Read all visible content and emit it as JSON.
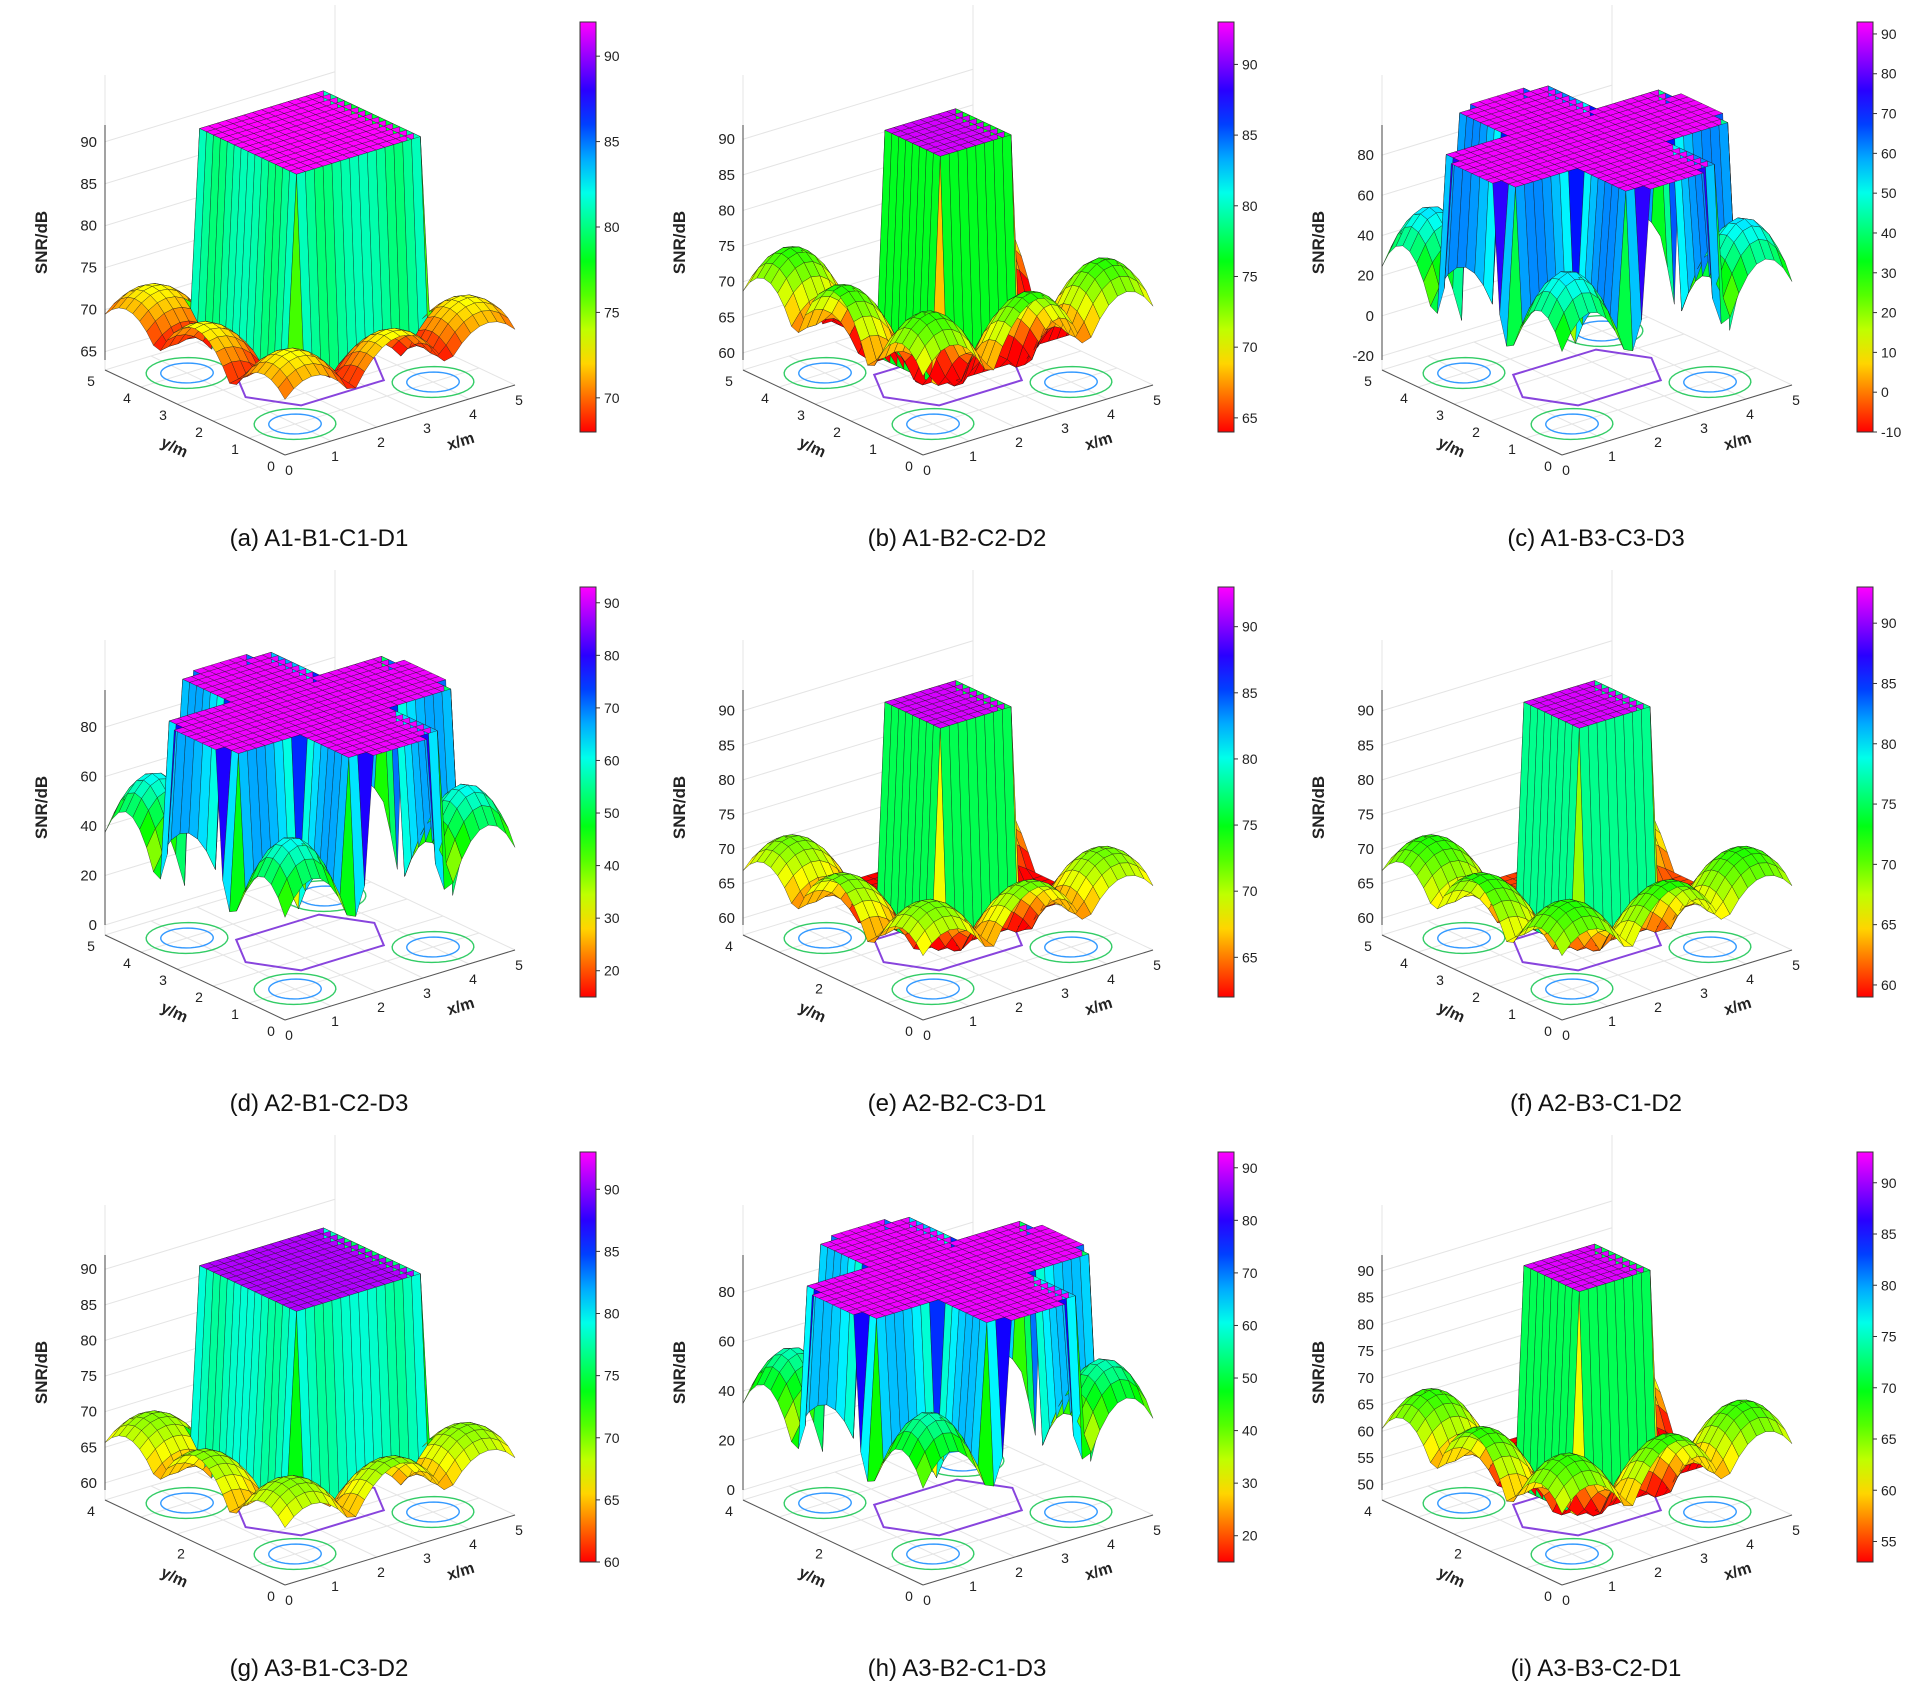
{
  "figure": {
    "panels": [
      {
        "id": "a",
        "caption": "(a)  A1-B1-C1-D1",
        "type": "roof",
        "z_ticks": [
          "65",
          "70",
          "75",
          "80",
          "85",
          "90"
        ],
        "zmin": 64,
        "zmax": 92,
        "cb_ticks": [
          "70",
          "75",
          "80",
          "85",
          "90"
        ],
        "cbmin": 68,
        "cbmax": 92,
        "x_ticks": [
          "0",
          "1",
          "2",
          "3",
          "4",
          "5"
        ],
        "y_ticks": [
          "0",
          "1",
          "2",
          "3",
          "4",
          "5"
        ],
        "top": 92,
        "domes": 73,
        "shelf": 80
      },
      {
        "id": "b",
        "caption": "(b) A1-B2-C2-D2",
        "type": "tower",
        "z_ticks": [
          "60",
          "65",
          "70",
          "75",
          "80",
          "85",
          "90"
        ],
        "zmin": 59,
        "zmax": 92,
        "cb_ticks": [
          "65",
          "70",
          "75",
          "80",
          "85",
          "90"
        ],
        "cbmin": 64,
        "cbmax": 93,
        "x_ticks": [
          "0",
          "1",
          "2",
          "3",
          "4",
          "5"
        ],
        "y_ticks": [
          "0",
          "1",
          "2",
          "3",
          "4",
          "5"
        ],
        "top": 92,
        "domes": 75,
        "shelf": 66
      },
      {
        "id": "c",
        "caption": "(c) A1-B3-C3-D3",
        "type": "cross",
        "z_ticks": [
          "-20",
          "0",
          "20",
          "40",
          "60",
          "80"
        ],
        "zmin": -22,
        "zmax": 95,
        "cb_ticks": [
          "-10",
          "0",
          "10",
          "20",
          "30",
          "40",
          "50",
          "60",
          "70",
          "80",
          "90"
        ],
        "cbmin": -10,
        "cbmax": 93,
        "x_ticks": [
          "0",
          "1",
          "2",
          "3",
          "4",
          "5"
        ],
        "y_ticks": [
          "0",
          "1",
          "2",
          "3",
          "4",
          "5"
        ],
        "top": 92,
        "domes": 55,
        "shelf": 55
      },
      {
        "id": "d",
        "caption": "(d) A2-B1-C2-D3",
        "type": "cross",
        "z_ticks": [
          "0",
          "20",
          "40",
          "60",
          "80"
        ],
        "zmin": 0,
        "zmax": 95,
        "cb_ticks": [
          "20",
          "30",
          "40",
          "50",
          "60",
          "70",
          "80",
          "90"
        ],
        "cbmin": 15,
        "cbmax": 93,
        "x_ticks": [
          "0",
          "1",
          "2",
          "3",
          "4",
          "5"
        ],
        "y_ticks": [
          "0",
          "1",
          "2",
          "3",
          "4",
          "5"
        ],
        "top": 92,
        "domes": 62,
        "shelf": 45
      },
      {
        "id": "e",
        "caption": "(e) A2-B2-C3-D1",
        "type": "tower",
        "z_ticks": [
          "60",
          "65",
          "70",
          "75",
          "80",
          "85",
          "90"
        ],
        "zmin": 59,
        "zmax": 93,
        "cb_ticks": [
          "65",
          "70",
          "75",
          "80",
          "85",
          "90"
        ],
        "cbmin": 62,
        "cbmax": 93,
        "x_ticks": [
          "0",
          "1",
          "2",
          "3",
          "4",
          "5"
        ],
        "y_ticks": [
          "0",
          "2",
          "4"
        ],
        "top": 92,
        "domes": 72,
        "shelf": 66
      },
      {
        "id": "f",
        "caption": "(f) A2-B3-C1-D2",
        "type": "tower",
        "z_ticks": [
          "60",
          "65",
          "70",
          "75",
          "80",
          "85",
          "90"
        ],
        "zmin": 59,
        "zmax": 93,
        "cb_ticks": [
          "60",
          "65",
          "70",
          "75",
          "80",
          "85",
          "90"
        ],
        "cbmin": 59,
        "cbmax": 93,
        "x_ticks": [
          "0",
          "1",
          "2",
          "3",
          "4",
          "5"
        ],
        "y_ticks": [
          "0",
          "1",
          "2",
          "3",
          "4",
          "5"
        ],
        "top": 92,
        "domes": 72,
        "shelf": 66
      },
      {
        "id": "g",
        "caption": "(g) A3-B1-C3-D2",
        "type": "roof",
        "z_ticks": [
          "60",
          "65",
          "70",
          "75",
          "80",
          "85",
          "90"
        ],
        "zmin": 59,
        "zmax": 92,
        "cb_ticks": [
          "60",
          "65",
          "70",
          "75",
          "80",
          "85",
          "90"
        ],
        "cbmin": 60,
        "cbmax": 93,
        "x_ticks": [
          "0",
          "1",
          "2",
          "3",
          "4",
          "5"
        ],
        "y_ticks": [
          "0",
          "2",
          "4"
        ],
        "top": 91,
        "domes": 70,
        "shelf": 76
      },
      {
        "id": "h",
        "caption": "(h) A3-B2-C1-D3",
        "type": "cross",
        "z_ticks": [
          "0",
          "20",
          "40",
          "60",
          "80"
        ],
        "zmin": 0,
        "zmax": 95,
        "cb_ticks": [
          "20",
          "30",
          "40",
          "50",
          "60",
          "70",
          "80",
          "90"
        ],
        "cbmin": 15,
        "cbmax": 93,
        "x_ticks": [
          "0",
          "1",
          "2",
          "3",
          "4",
          "5"
        ],
        "y_ticks": [
          "0",
          "2",
          "4"
        ],
        "top": 92,
        "domes": 58,
        "shelf": 40
      },
      {
        "id": "i",
        "caption": "(i) A3-B3-C2-D1",
        "type": "tower",
        "z_ticks": [
          "50",
          "55",
          "60",
          "65",
          "70",
          "75",
          "80",
          "85",
          "90"
        ],
        "zmin": 49,
        "zmax": 93,
        "cb_ticks": [
          "55",
          "60",
          "65",
          "70",
          "75",
          "80",
          "85",
          "90"
        ],
        "cbmin": 53,
        "cbmax": 93,
        "x_ticks": [
          "0",
          "1",
          "2",
          "3",
          "4",
          "5"
        ],
        "y_ticks": [
          "0",
          "2",
          "4"
        ],
        "top": 92,
        "domes": 68,
        "shelf": 60
      }
    ],
    "labels": {
      "z": "SNR/dB",
      "x": "x/m",
      "y": "y/m"
    }
  },
  "chart_data": {
    "type": "surface",
    "title": "",
    "zlabel": "SNR/dB",
    "xlabel": "x/m",
    "ylabel": "y/m",
    "xlim": [
      0,
      5
    ],
    "ylim": [
      0,
      5
    ],
    "colormap": "hsv (red-yellow-green-cyan-blue-magenta-red)",
    "grid": true,
    "colorbar": "right",
    "panels": [
      {
        "name": "(a)  A1-B1-C1-D1",
        "zlim": [
          65,
          92
        ],
        "peak_snr_db": 92,
        "corner_dome_snr_db": 73
      },
      {
        "name": "(b) A1-B2-C2-D2",
        "zlim": [
          60,
          92
        ],
        "peak_snr_db": 92,
        "corner_dome_snr_db": 75
      },
      {
        "name": "(c) A1-B3-C3-D3",
        "zlim": [
          -20,
          92
        ],
        "peak_snr_db": 92,
        "corner_dome_snr_db": 55
      },
      {
        "name": "(d) A2-B1-C2-D3",
        "zlim": [
          0,
          92
        ],
        "peak_snr_db": 92,
        "corner_dome_snr_db": 62
      },
      {
        "name": "(e) A2-B2-C3-D1",
        "zlim": [
          60,
          92
        ],
        "peak_snr_db": 92,
        "corner_dome_snr_db": 72
      },
      {
        "name": "(f) A2-B3-C1-D2",
        "zlim": [
          60,
          92
        ],
        "peak_snr_db": 92,
        "corner_dome_snr_db": 72
      },
      {
        "name": "(g) A3-B1-C3-D2",
        "zlim": [
          60,
          92
        ],
        "peak_snr_db": 91,
        "corner_dome_snr_db": 70
      },
      {
        "name": "(h) A3-B2-C1-D3",
        "zlim": [
          0,
          92
        ],
        "peak_snr_db": 92,
        "corner_dome_snr_db": 58
      },
      {
        "name": "(i) A3-B3-C2-D1",
        "zlim": [
          50,
          92
        ],
        "peak_snr_db": 92,
        "corner_dome_snr_db": 68
      }
    ]
  }
}
